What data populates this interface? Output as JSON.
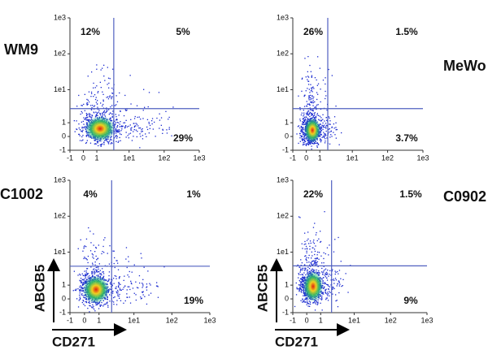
{
  "chart_data": [
    {
      "type": "quadrant",
      "title": "WM9",
      "scale": "asinh",
      "xlim": [
        -1,
        1000
      ],
      "ylim": [
        -1,
        1000
      ],
      "xticks": [
        -1,
        0,
        1,
        {
          "value": 10,
          "label": "1e1"
        },
        {
          "value": 100,
          "label": "1e2"
        },
        {
          "value": 1000,
          "label": "1e3"
        }
      ],
      "yticks": [
        -1,
        0,
        1,
        {
          "value": 10,
          "label": "1e1"
        },
        {
          "value": 100,
          "label": "1e2"
        },
        {
          "value": 1000,
          "label": "1e3"
        }
      ],
      "gates": {
        "x": 3.6,
        "y": 2.9
      },
      "gate_color": "#5060c0",
      "quadrants": {
        "values": [
          12,
          5,
          29
        ],
        "value_labels": [
          "12%",
          "5%",
          "29%"
        ]
      }
    },
    {
      "type": "quadrant",
      "title": "MeWo",
      "scale": "asinh",
      "xlim": [
        -1,
        1000
      ],
      "ylim": [
        -1,
        1000
      ],
      "xticks": [
        -1,
        0,
        1,
        {
          "value": 10,
          "label": "1e1"
        },
        {
          "value": 100,
          "label": "1e2"
        },
        {
          "value": 1000,
          "label": "1e3"
        }
      ],
      "yticks": [
        -1,
        0,
        1,
        {
          "value": 10,
          "label": "1e1"
        },
        {
          "value": 100,
          "label": "1e2"
        },
        {
          "value": 1000,
          "label": "1e3"
        }
      ],
      "gates": {
        "x": 1.9,
        "y": 2.9
      },
      "gate_color": "#5060c0",
      "quadrants": {
        "values": [
          26,
          1.5,
          3.7
        ],
        "value_labels": [
          "26%",
          "1.5%",
          "3.7%"
        ]
      }
    },
    {
      "type": "quadrant",
      "title": "C1002",
      "scale": "asinh",
      "xlim": [
        -1,
        1000
      ],
      "ylim": [
        -1,
        1000
      ],
      "xticks": [
        -1,
        0,
        1,
        {
          "value": 10,
          "label": "1e1"
        },
        {
          "value": 100,
          "label": "1e2"
        },
        {
          "value": 1000,
          "label": "1e3"
        }
      ],
      "yticks": [
        -1,
        0,
        1,
        {
          "value": 10,
          "label": "1e1"
        },
        {
          "value": 100,
          "label": "1e2"
        },
        {
          "value": 1000,
          "label": "1e3"
        }
      ],
      "gates": {
        "x": 2.5,
        "y": 4.0
      },
      "gate_color": "#5060c0",
      "quadrants": {
        "values": [
          4,
          1,
          19
        ],
        "value_labels": [
          "4%",
          "1%",
          "19%"
        ]
      },
      "x_label": "CD271",
      "y_label": "ABCB5"
    },
    {
      "type": "quadrant",
      "title": "C0902",
      "scale": "asinh",
      "xlim": [
        -1,
        1000
      ],
      "ylim": [
        -1,
        1000
      ],
      "xticks": [
        -1,
        0,
        1,
        {
          "value": 10,
          "label": "1e1"
        },
        {
          "value": 100,
          "label": "1e2"
        },
        {
          "value": 1000,
          "label": "1e3"
        }
      ],
      "yticks": [
        -1,
        0,
        1,
        {
          "value": 10,
          "label": "1e1"
        },
        {
          "value": 100,
          "label": "1e2"
        },
        {
          "value": 1000,
          "label": "1e3"
        }
      ],
      "gates": {
        "x": 2.3,
        "y": 4.1
      },
      "gate_color": "#5060c0",
      "quadrants": {
        "values": [
          22,
          1.5,
          9
        ],
        "value_labels": [
          "22%",
          "1.5%",
          "9%"
        ]
      },
      "x_label": "CD271",
      "y_label": "ABCB5"
    }
  ]
}
